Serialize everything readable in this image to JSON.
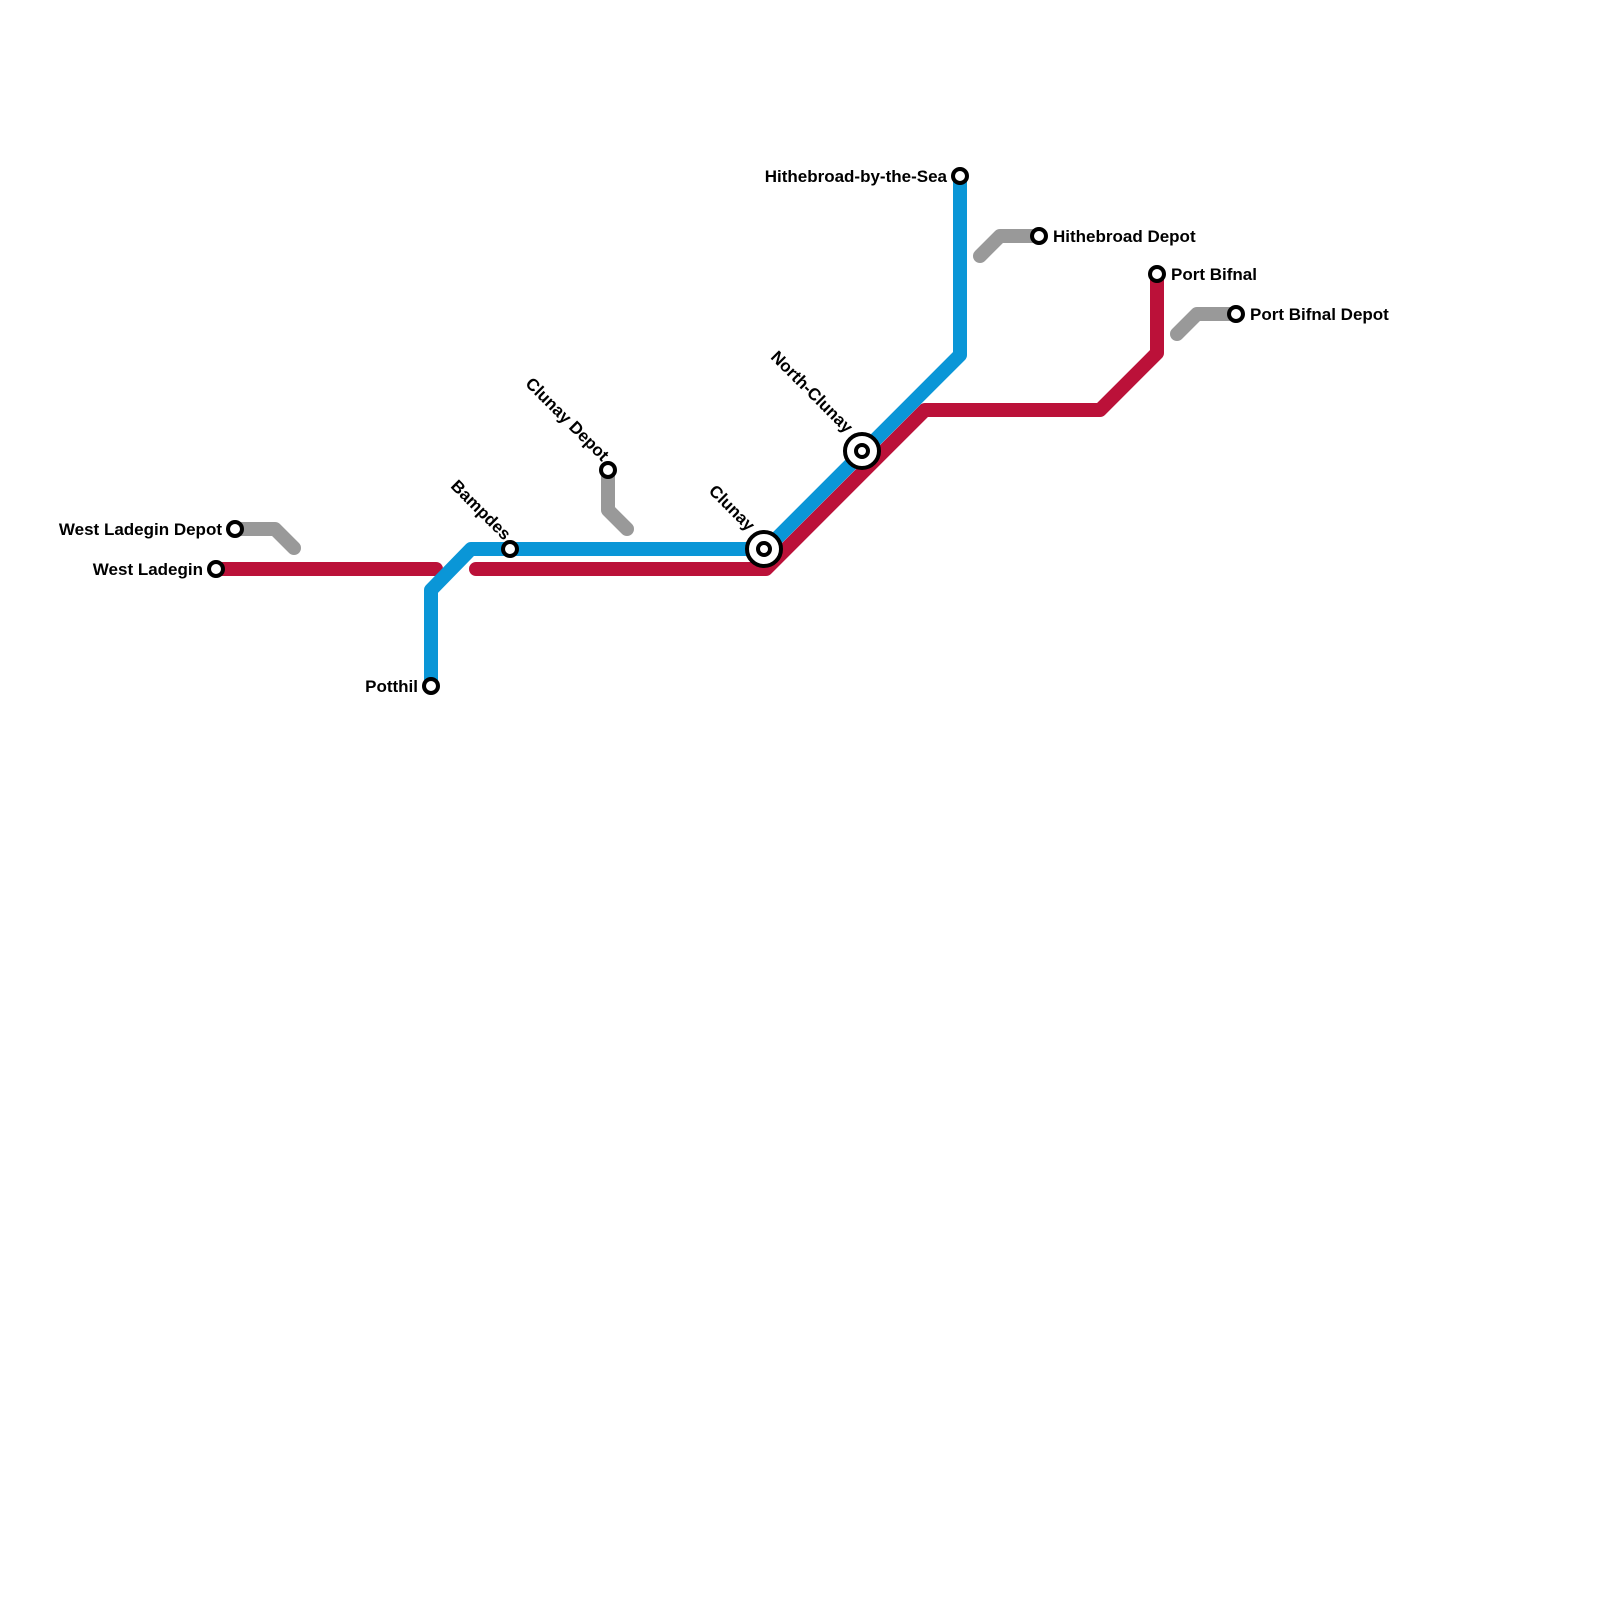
{
  "lines": [
    {
      "name": "red",
      "color": "#bb1139"
    },
    {
      "name": "blue",
      "color": "#0a96d7"
    },
    {
      "name": "depot",
      "color": "#999999"
    }
  ],
  "stations": {
    "west_ladegin_depot": "West Ladegin Depot",
    "west_ladegin": "West Ladegin",
    "potthil": "Potthil",
    "bampdes": "Bampdes",
    "clunay_depot": "Clunay Depot",
    "clunay": "Clunay",
    "north_clunay": "North-Clunay",
    "hithebroad_by_the_sea": "Hithebroad-by-the-Sea",
    "hithebroad_depot": "Hithebroad Depot",
    "port_bifnal": "Port Bifnal",
    "port_bifnal_depot": "Port Bifnal Depot"
  }
}
